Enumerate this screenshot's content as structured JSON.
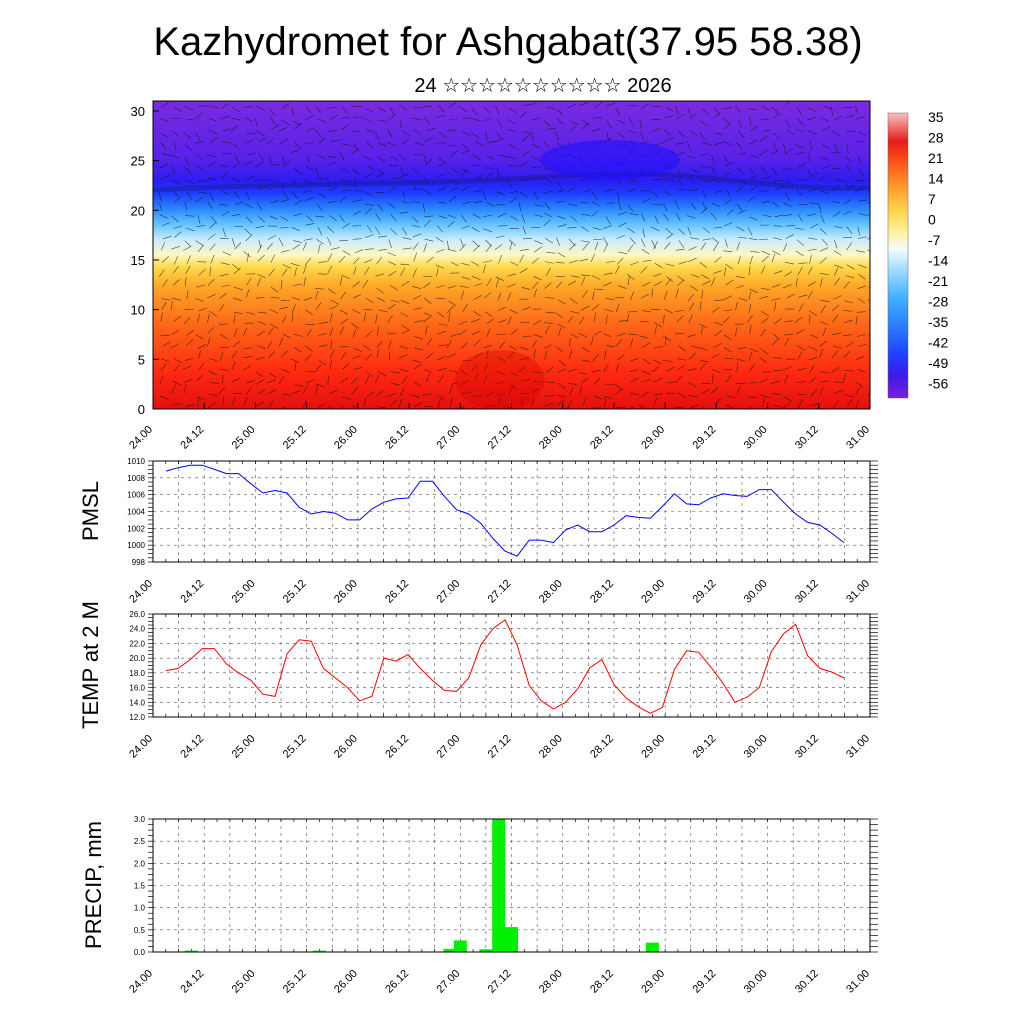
{
  "title": "Kazhydromet for Ashgabat(37.95 58.38)",
  "subtitle": "24 ☆☆☆☆☆☆☆☆☆☆ 2026",
  "time_labels": [
    "24.00",
    "24.12",
    "25.00",
    "25.12",
    "26.00",
    "26.12",
    "27.00",
    "27.12",
    "28.00",
    "28.12",
    "29.00",
    "29.12",
    "30.00",
    "30.12",
    "31.00"
  ],
  "colors": {
    "pmsl_line": "#0000ff",
    "temp_line": "#ff0000",
    "precip_bar": "#00ee00",
    "grid": "#555555"
  },
  "chart_data": [
    {
      "type": "heatmap",
      "name": "vertical cross-section",
      "x_labels": [
        "24.00",
        "24.12",
        "25.00",
        "25.12",
        "26.00",
        "26.12",
        "27.00",
        "27.12",
        "28.00",
        "28.12",
        "29.00",
        "29.12",
        "30.00",
        "30.12",
        "31.00"
      ],
      "y_ticks": [
        0,
        5,
        10,
        15,
        20,
        25,
        30
      ],
      "ylim": [
        0,
        31
      ],
      "colorbar": {
        "labels": [
          "35",
          "28",
          "21",
          "14",
          "7",
          "0",
          "-7",
          "-14",
          "-21",
          "-28",
          "-35",
          "-42",
          "-49",
          "-56"
        ],
        "range": [
          -63,
          40
        ]
      }
    },
    {
      "type": "line",
      "ylabel": "PMSL",
      "ylim": [
        998,
        1010
      ],
      "y_ticks": [
        998,
        1000,
        1002,
        1004,
        1006,
        1008,
        1010
      ],
      "x_labels": [
        "24.00",
        "24.12",
        "25.00",
        "25.12",
        "26.00",
        "26.12",
        "27.00",
        "27.12",
        "28.00",
        "28.12",
        "29.00",
        "29.12",
        "30.00",
        "30.12",
        "31.00"
      ],
      "series": [
        {
          "name": "PMSL",
          "values": [
            1008.8,
            1009.2,
            1009.5,
            1009.5,
            1009.0,
            1008.5,
            1008.5,
            1007.3,
            1006.2,
            1006.5,
            1006.2,
            1004.5,
            1003.7,
            1004.0,
            1003.8,
            1003.0,
            1003.0,
            1004.3,
            1005.1,
            1005.5,
            1005.6,
            1007.6,
            1007.6,
            1005.8,
            1004.2,
            1003.7,
            1002.6,
            1000.8,
            999.3,
            998.7,
            1000.6,
            1000.6,
            1000.3,
            1001.8,
            1002.4,
            1001.6,
            1001.6,
            1002.4,
            1003.5,
            1003.3,
            1003.2,
            1004.6,
            1006.1,
            1004.9,
            1004.8,
            1005.6,
            1006.1,
            1005.9,
            1005.8,
            1006.6,
            1006.6,
            1005.1,
            1003.7,
            1002.7,
            1002.4,
            1001.4,
            1000.3
          ]
        }
      ]
    },
    {
      "type": "line",
      "ylabel": "TEMP at 2 M",
      "ylim": [
        12,
        26
      ],
      "y_ticks": [
        "12.0",
        "14.0",
        "16.0",
        "18.0",
        "20.0",
        "22.0",
        "24.0",
        "26.0"
      ],
      "x_labels": [
        "24.00",
        "24.12",
        "25.00",
        "25.12",
        "26.00",
        "26.12",
        "27.00",
        "27.12",
        "28.00",
        "28.12",
        "29.00",
        "29.12",
        "30.00",
        "30.12",
        "31.00"
      ],
      "series": [
        {
          "name": "TEMP",
          "values": [
            18.3,
            18.6,
            19.8,
            21.3,
            21.3,
            19.2,
            18.0,
            17.0,
            15.1,
            14.8,
            20.6,
            22.5,
            22.3,
            18.6,
            17.3,
            16.0,
            14.2,
            14.8,
            20.0,
            19.6,
            20.5,
            18.6,
            17.0,
            15.6,
            15.5,
            17.3,
            21.8,
            24.0,
            25.2,
            21.8,
            16.3,
            14.2,
            13.1,
            14.0,
            15.8,
            18.7,
            19.8,
            16.4,
            14.6,
            13.4,
            12.5,
            13.3,
            18.5,
            21.0,
            20.8,
            18.8,
            16.6,
            14.0,
            14.7,
            16.0,
            20.9,
            23.3,
            24.6,
            20.3,
            18.6,
            18.1,
            17.3
          ]
        }
      ]
    },
    {
      "type": "bar",
      "ylabel": "PRECIP, mm",
      "ylim": [
        0,
        3
      ],
      "y_ticks": [
        "0.0",
        "0.5",
        "1.0",
        "1.5",
        "2.0",
        "2.5",
        "3.0"
      ],
      "x_labels": [
        "24.00",
        "24.12",
        "25.00",
        "25.12",
        "26.00",
        "26.12",
        "27.00",
        "27.12",
        "28.00",
        "28.12",
        "29.00",
        "29.12",
        "30.00",
        "30.12",
        "31.00"
      ],
      "bars": [
        {
          "t": 26.9,
          "value": 0.06
        },
        {
          "t": 27.0,
          "value": 0.25
        },
        {
          "t": 27.25,
          "value": 0.05
        },
        {
          "t": 27.375,
          "value": 3.0
        },
        {
          "t": 27.5,
          "value": 0.55
        },
        {
          "t": 28.875,
          "value": 0.2
        },
        {
          "t": 24.375,
          "value": 0.02
        },
        {
          "t": 25.625,
          "value": 0.02
        }
      ]
    }
  ]
}
